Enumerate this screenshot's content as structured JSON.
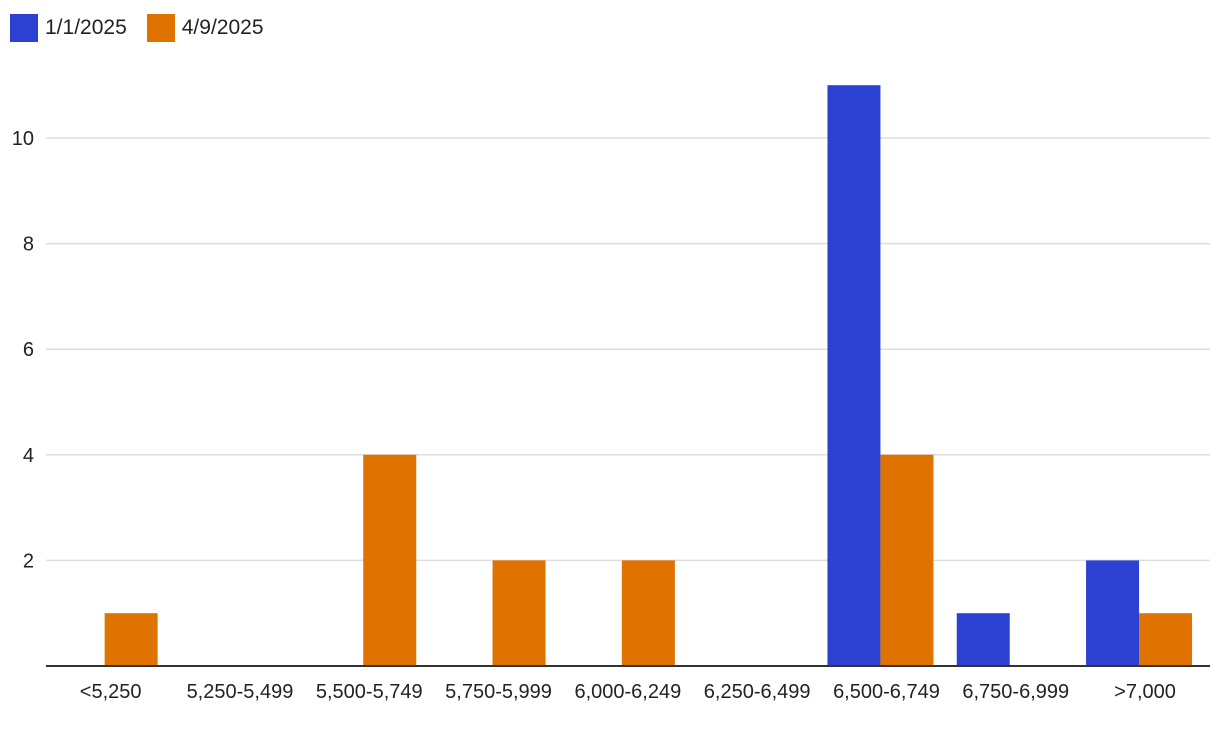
{
  "chart_data": {
    "type": "bar",
    "categories": [
      "<5,250",
      "5,250-5,499",
      "5,500-5,749",
      "5,750-5,999",
      "6,000-6,249",
      "6,250-6,499",
      "6,500-6,749",
      "6,750-6,999",
      ">7,000"
    ],
    "series": [
      {
        "name": "1/1/2025",
        "color": "#2c41d1",
        "values": [
          0,
          0,
          0,
          0,
          0,
          0,
          11,
          1,
          2
        ]
      },
      {
        "name": "4/9/2025",
        "color": "#e07200",
        "values": [
          1,
          0,
          4,
          2,
          2,
          0,
          4,
          0,
          1
        ]
      }
    ],
    "yticks": [
      2,
      4,
      6,
      8,
      10
    ],
    "ylim": [
      0,
      11.5
    ],
    "title": "",
    "xlabel": "",
    "ylabel": "",
    "grid": true,
    "legend_position": "top-left"
  }
}
